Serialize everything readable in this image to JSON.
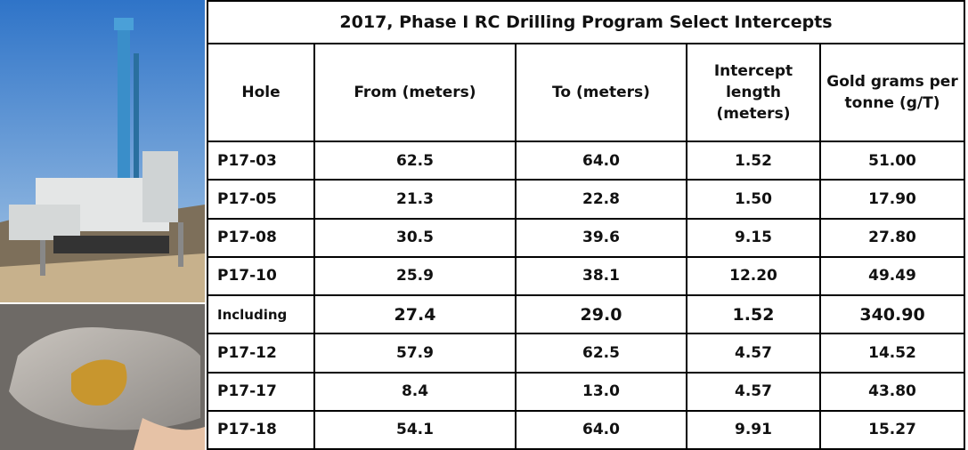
{
  "table": {
    "title": "2017, Phase I RC Drilling Program Select Intercepts",
    "columns": [
      "Hole",
      "From (meters)",
      "To (meters)",
      "Intercept length (meters)",
      "Gold grams per tonne (g/T)"
    ],
    "rows": [
      [
        "P17-03",
        "62.5",
        "64.0",
        "1.52",
        "51.00"
      ],
      [
        "P17-05",
        "21.3",
        "22.8",
        "1.50",
        "17.90"
      ],
      [
        "P17-08",
        "30.5",
        "39.6",
        "9.15",
        "27.80"
      ],
      [
        "P17-10",
        "25.9",
        "38.1",
        "12.20",
        "49.49"
      ],
      [
        "Including",
        "27.4",
        "29.0",
        "1.52",
        "340.90"
      ],
      [
        "P17-12",
        "57.9",
        "62.5",
        "4.57",
        "14.52"
      ],
      [
        "P17-17",
        "8.4",
        "13.0",
        "4.57",
        "43.80"
      ],
      [
        "P17-18",
        "54.1",
        "64.0",
        "9.91",
        "15.27"
      ]
    ]
  }
}
